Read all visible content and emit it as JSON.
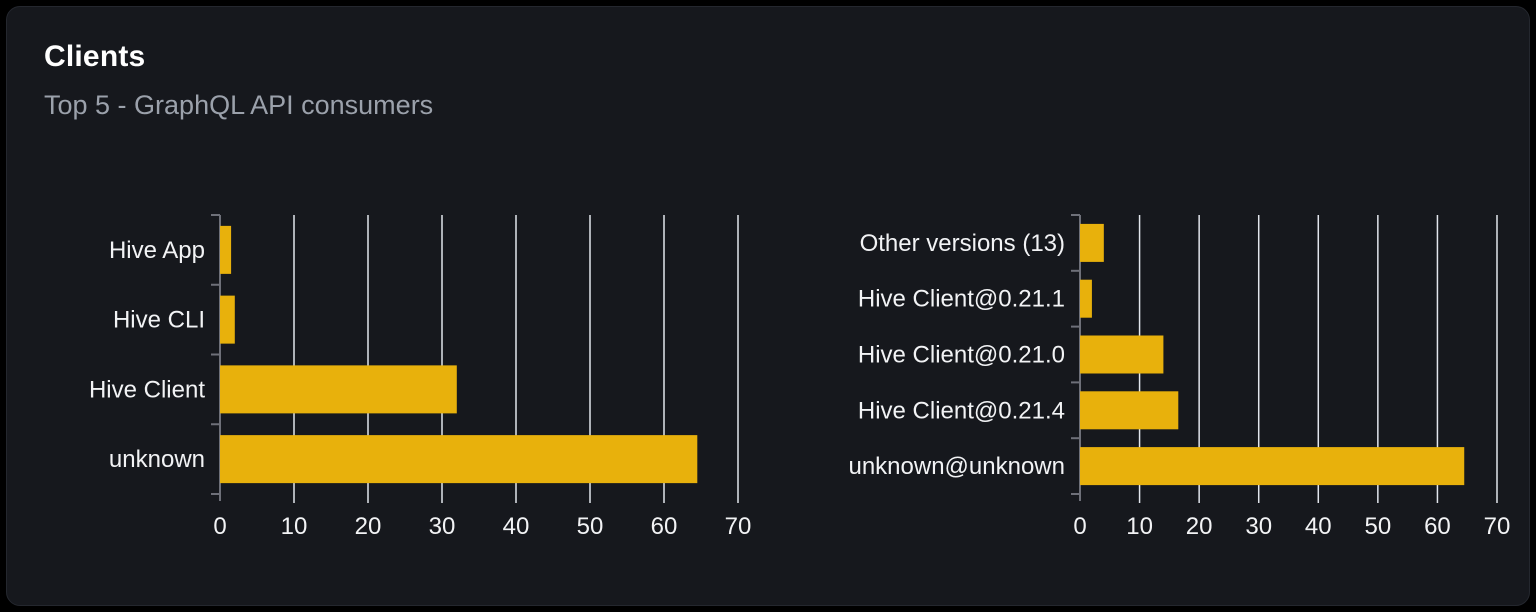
{
  "page": {
    "title": "Clients",
    "subtitle": "Top 5 - GraphQL API consumers"
  },
  "colors": {
    "page_bg": "#000000",
    "card_bg": "#16181d",
    "card_border": "#24272e",
    "title_text": "#ffffff",
    "subtitle_text": "#9ba1ab",
    "bar": "#e8b10c",
    "gridline": "#e1e5ec",
    "axis": "#6e7079",
    "chart_text": "#f2f3f5"
  },
  "chart_data": [
    {
      "type": "bar",
      "orientation": "horizontal",
      "title": "",
      "categories": [
        "Hive App",
        "Hive CLI",
        "Hive Client",
        "unknown"
      ],
      "values": [
        1.5,
        2,
        32,
        64.5
      ],
      "xlim": [
        0,
        70
      ],
      "xticks": [
        0,
        10,
        20,
        30,
        40,
        50,
        60,
        70
      ],
      "xtick_labels": [
        "0",
        "10",
        "20",
        "30",
        "40",
        "50",
        "60",
        "70"
      ],
      "grid": true,
      "legend": false
    },
    {
      "type": "bar",
      "orientation": "horizontal",
      "title": "",
      "categories": [
        "Other versions (13)",
        "Hive Client@0.21.1",
        "Hive Client@0.21.0",
        "Hive Client@0.21.4",
        "unknown@unknown"
      ],
      "values": [
        4,
        2,
        14,
        16.5,
        64.5
      ],
      "xlim": [
        0,
        70
      ],
      "xticks": [
        0,
        10,
        20,
        30,
        40,
        50,
        60,
        70
      ],
      "xtick_labels": [
        "0",
        "10",
        "20",
        "30",
        "40",
        "50",
        "60",
        "70"
      ],
      "grid": true,
      "legend": false
    }
  ]
}
